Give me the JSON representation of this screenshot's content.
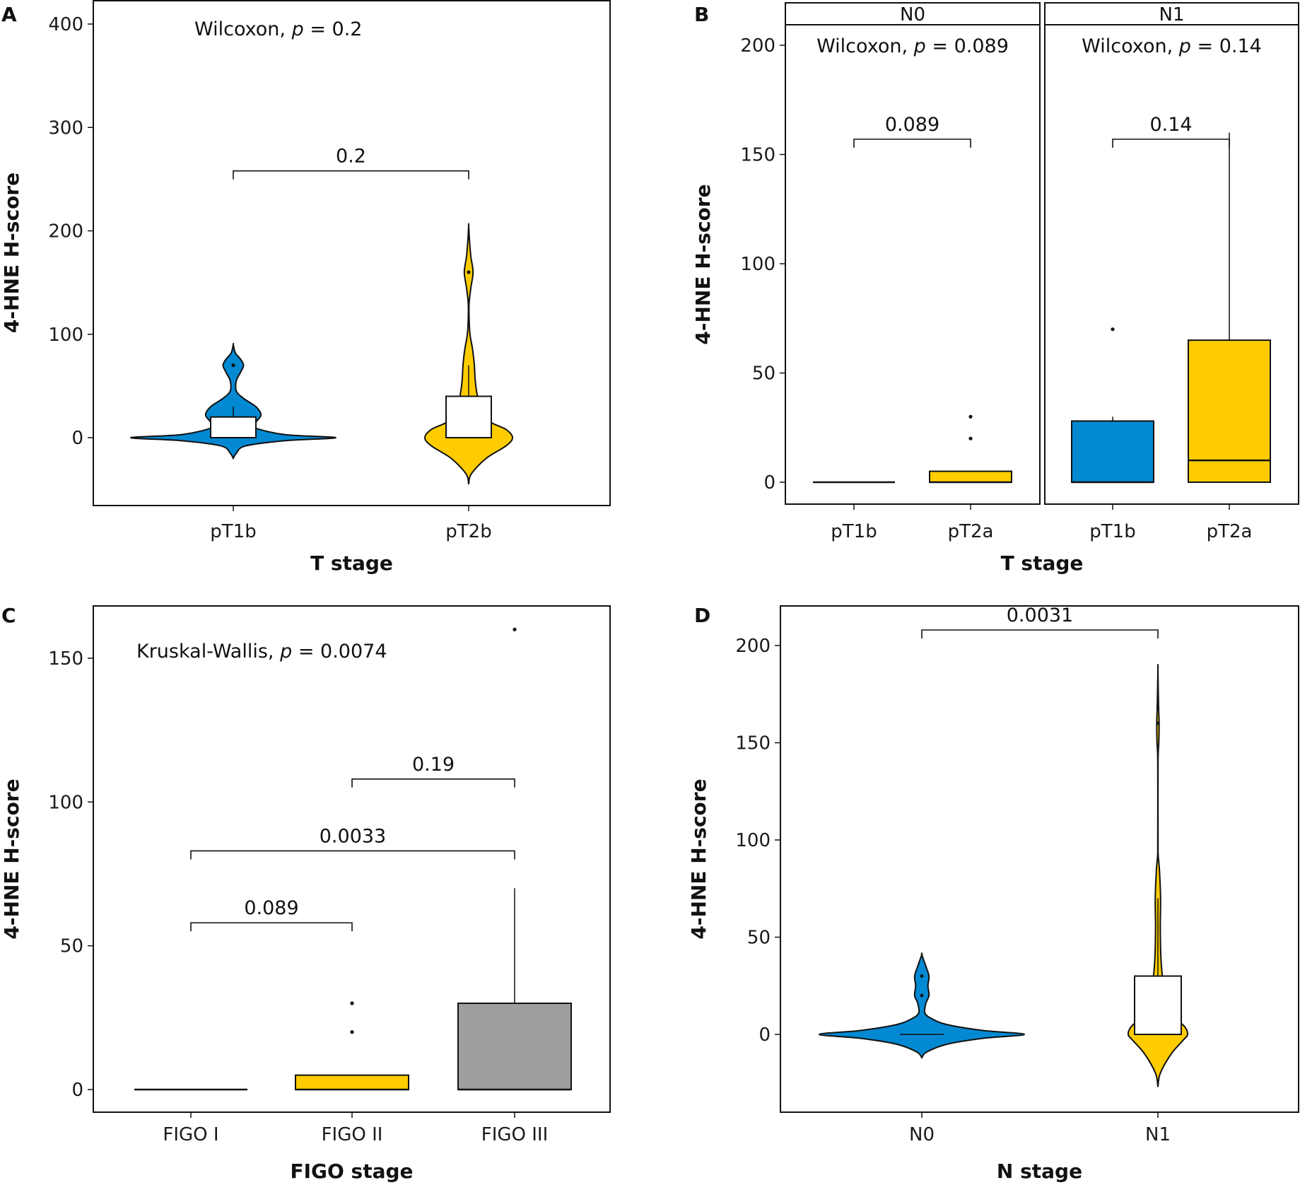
{
  "colors": {
    "blue": "#0389D2",
    "yellow": "#FFCC00",
    "gray": "#9E9E9E",
    "box_white": "#FFFFFF",
    "line": "#111111"
  },
  "chart_data": [
    {
      "panel": "A",
      "type": "violin",
      "title": "",
      "xlabel": "T stage",
      "ylabel": "4-HNE H-score",
      "ylim": [
        -65,
        423
      ],
      "yticks": [
        0,
        100,
        200,
        300,
        400
      ],
      "grid": false,
      "categories": [
        "pT1b",
        "pT2b"
      ],
      "annotation": {
        "test": "Wilcoxon",
        "p_label": "p",
        "text_prefix": "Wilcoxon, ",
        "text_suffix": " = 0.2"
      },
      "series": [
        {
          "name": "pT1b",
          "color": "blue",
          "min": -20,
          "max": 90,
          "box": {
            "q1": 0,
            "median": 0,
            "q3": 20,
            "whisker_high": 30
          },
          "outliers": [
            70
          ]
        },
        {
          "name": "pT2b",
          "color": "yellow",
          "min": -45,
          "max": 205,
          "box": {
            "q1": 0,
            "median": 0,
            "q3": 40,
            "whisker_high": 70
          },
          "outliers": [
            160
          ]
        }
      ],
      "comparisons": [
        {
          "from": "pT1b",
          "to": "pT2b",
          "y": 258,
          "label": "0.2"
        }
      ]
    },
    {
      "panel": "B",
      "type": "box",
      "facet": true,
      "xlabel": "T stage",
      "ylabel": "4-HNE H-score",
      "ylim": [
        -10,
        210
      ],
      "yticks": [
        0,
        50,
        100,
        150,
        200
      ],
      "grid": false,
      "facets": [
        {
          "strip": "N0",
          "annotation": {
            "text_prefix": "Wilcoxon, ",
            "p_label": "p",
            "text_suffix": " = 0.089"
          },
          "categories": [
            "pT1b",
            "pT2a"
          ],
          "series": [
            {
              "name": "pT1b",
              "color": "blue",
              "box": {
                "q1": 0,
                "median": 0,
                "q3": 0,
                "whisker_low": 0,
                "whisker_high": 0
              },
              "outliers": []
            },
            {
              "name": "pT2a",
              "color": "yellow",
              "box": {
                "q1": 0,
                "median": 0,
                "q3": 5,
                "whisker_low": 0,
                "whisker_high": 5
              },
              "outliers": [
                20,
                30
              ]
            }
          ],
          "comparisons": [
            {
              "from": "pT1b",
              "to": "pT2a",
              "y": 157,
              "label": "0.089"
            }
          ]
        },
        {
          "strip": "N1",
          "annotation": {
            "text_prefix": "Wilcoxon, ",
            "p_label": "p",
            "text_suffix": " = 0.14"
          },
          "categories": [
            "pT1b",
            "pT2a"
          ],
          "series": [
            {
              "name": "pT1b",
              "color": "blue",
              "box": {
                "q1": 0,
                "median": 0,
                "q3": 28,
                "whisker_low": 0,
                "whisker_high": 30
              },
              "outliers": [
                70
              ]
            },
            {
              "name": "pT2a",
              "color": "yellow",
              "box": {
                "q1": 0,
                "median": 10,
                "q3": 65,
                "whisker_low": 0,
                "whisker_high": 160
              },
              "outliers": []
            }
          ],
          "comparisons": [
            {
              "from": "pT1b",
              "to": "pT2a",
              "y": 157,
              "label": "0.14"
            }
          ]
        }
      ]
    },
    {
      "panel": "C",
      "type": "box",
      "xlabel": "FIGO stage",
      "ylabel": "4-HNE H-score",
      "ylim": [
        -8,
        168
      ],
      "yticks": [
        0,
        50,
        100,
        150
      ],
      "grid": false,
      "categories": [
        "FIGO I",
        "FIGO II",
        "FIGO III"
      ],
      "annotation": {
        "text_prefix": "Kruskal-Wallis, ",
        "p_label": "p",
        "text_suffix": " = 0.0074"
      },
      "series": [
        {
          "name": "FIGO I",
          "color": "blue",
          "box": {
            "q1": 0,
            "median": 0,
            "q3": 0,
            "whisker_low": 0,
            "whisker_high": 0
          },
          "outliers": []
        },
        {
          "name": "FIGO II",
          "color": "yellow",
          "box": {
            "q1": 0,
            "median": 0,
            "q3": 5,
            "whisker_low": 0,
            "whisker_high": 5
          },
          "outliers": [
            20,
            30
          ]
        },
        {
          "name": "FIGO III",
          "color": "gray",
          "box": {
            "q1": 0,
            "median": 0,
            "q3": 30,
            "whisker_low": 0,
            "whisker_high": 70
          },
          "outliers": [
            160
          ]
        }
      ],
      "comparisons": [
        {
          "from": "FIGO I",
          "to": "FIGO II",
          "y": 58,
          "label": "0.089"
        },
        {
          "from": "FIGO I",
          "to": "FIGO III",
          "y": 83,
          "label": "0.0033"
        },
        {
          "from": "FIGO II",
          "to": "FIGO III",
          "y": 108,
          "label": "0.19"
        }
      ]
    },
    {
      "panel": "D",
      "type": "violin",
      "xlabel": "N stage",
      "ylabel": "4-HNE H-score",
      "ylim": [
        -40,
        220
      ],
      "yticks": [
        0,
        50,
        100,
        150,
        200
      ],
      "grid": false,
      "categories": [
        "N0",
        "N1"
      ],
      "series": [
        {
          "name": "N0",
          "color": "blue",
          "min": -12,
          "max": 41,
          "box": {
            "q1": 0,
            "median": 0,
            "q3": 0,
            "whisker_high": 0
          },
          "outliers": [
            20,
            30
          ]
        },
        {
          "name": "N1",
          "color": "yellow",
          "min": -27,
          "max": 188,
          "box": {
            "q1": 0,
            "median": 0,
            "q3": 30,
            "whisker_high": 70
          },
          "outliers": [
            160
          ]
        }
      ],
      "comparisons": [
        {
          "from": "N0",
          "to": "N1",
          "y": 208,
          "label": "0.0031"
        }
      ]
    }
  ]
}
